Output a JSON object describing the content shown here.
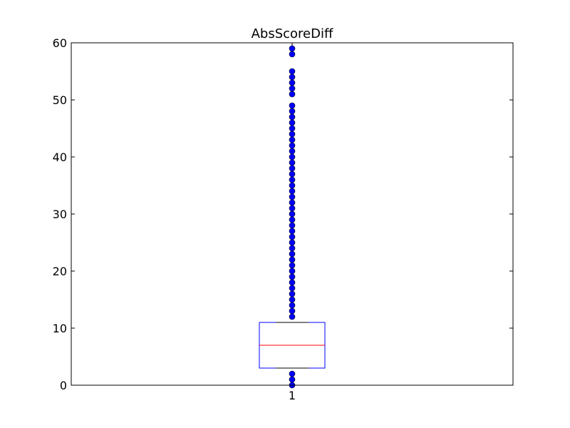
{
  "chart_data": {
    "type": "box",
    "title": "AbsScoreDiff",
    "xlabel": "",
    "ylabel": "",
    "ylim": [
      0,
      60
    ],
    "yticks": [
      0,
      10,
      20,
      30,
      40,
      50,
      60
    ],
    "categories": [
      "1"
    ],
    "box": {
      "q1": 3,
      "median": 7,
      "q3": 11,
      "whisker_low": 3,
      "whisker_high": 11
    },
    "outliers": [
      0,
      1,
      2,
      12,
      13,
      14,
      15,
      16,
      17,
      18,
      19,
      20,
      21,
      22,
      23,
      24,
      25,
      26,
      27,
      28,
      29,
      30,
      31,
      32,
      33,
      34,
      35,
      36,
      37,
      38,
      39,
      40,
      41,
      42,
      43,
      44,
      45,
      46,
      47,
      48,
      49,
      51,
      52,
      53,
      54,
      55,
      58,
      59
    ],
    "grid": false,
    "colors": {
      "box": "#0000ff",
      "median": "#ff0000",
      "whisker": "#000000",
      "outlier": "#0000ff"
    }
  }
}
